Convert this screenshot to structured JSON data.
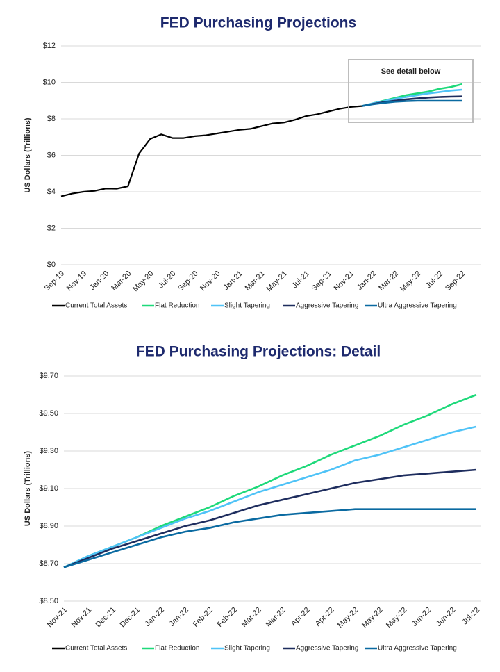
{
  "chart_data": [
    {
      "type": "line",
      "title": "FED Purchasing Projections",
      "y_label": "US Dollars (Trillions)",
      "annotation": "See detail below",
      "categories": [
        "Sep-19",
        null,
        "Nov-19",
        null,
        "Jan-20",
        null,
        "Mar-20",
        null,
        "May-20",
        null,
        "Jul-20",
        null,
        "Sep-20",
        null,
        "Nov-20",
        null,
        "Jan-21",
        null,
        "Mar-21",
        null,
        "May-21",
        null,
        "Jul-21",
        null,
        "Sep-21",
        null,
        "Nov-21",
        null,
        "Jan-22",
        null,
        "Mar-22",
        null,
        "May-22",
        null,
        "Jul-22",
        null,
        "Sep-22"
      ],
      "ylim": [
        0,
        12
      ],
      "yticks": [
        {
          "value": 0,
          "label": "$0"
        },
        {
          "value": 2,
          "label": "$2"
        },
        {
          "value": 4,
          "label": "$4"
        },
        {
          "value": 6,
          "label": "$6"
        },
        {
          "value": 8,
          "label": "$8"
        },
        {
          "value": 10,
          "label": "$10"
        },
        {
          "value": 12,
          "label": "$12"
        }
      ],
      "grid": true,
      "series": [
        {
          "name": "Current Total Assets",
          "color": "#000000",
          "values": [
            3.75,
            3.9,
            4.0,
            4.05,
            4.18,
            4.17,
            4.3,
            6.1,
            6.9,
            7.15,
            6.95,
            6.95,
            7.05,
            7.1,
            7.2,
            7.3,
            7.4,
            7.45,
            7.6,
            7.75,
            7.8,
            7.95,
            8.15,
            8.25,
            8.4,
            8.55,
            8.65,
            8.7,
            null,
            null,
            null,
            null,
            null,
            null,
            null,
            null,
            null
          ]
        },
        {
          "name": "Flat Reduction",
          "color": "#1ed97a",
          "values": [
            null,
            null,
            null,
            null,
            null,
            null,
            null,
            null,
            null,
            null,
            null,
            null,
            null,
            null,
            null,
            null,
            null,
            null,
            null,
            null,
            null,
            null,
            null,
            null,
            null,
            null,
            null,
            8.7,
            8.85,
            9.0,
            9.15,
            9.3,
            9.4,
            9.5,
            9.65,
            9.75,
            9.9
          ]
        },
        {
          "name": "Slight Tapering",
          "color": "#4fc3f7",
          "values": [
            null,
            null,
            null,
            null,
            null,
            null,
            null,
            null,
            null,
            null,
            null,
            null,
            null,
            null,
            null,
            null,
            null,
            null,
            null,
            null,
            null,
            null,
            null,
            null,
            null,
            null,
            null,
            8.7,
            8.85,
            8.97,
            9.1,
            9.2,
            9.3,
            9.4,
            9.47,
            9.55,
            9.6
          ]
        },
        {
          "name": "Aggressive Tapering",
          "color": "#1e2d5e",
          "values": [
            null,
            null,
            null,
            null,
            null,
            null,
            null,
            null,
            null,
            null,
            null,
            null,
            null,
            null,
            null,
            null,
            null,
            null,
            null,
            null,
            null,
            null,
            null,
            null,
            null,
            null,
            null,
            8.7,
            8.82,
            8.92,
            9.0,
            9.07,
            9.12,
            9.17,
            9.2,
            9.22,
            9.23
          ]
        },
        {
          "name": "Ultra Aggressive Tapering",
          "color": "#0a6aa1",
          "values": [
            null,
            null,
            null,
            null,
            null,
            null,
            null,
            null,
            null,
            null,
            null,
            null,
            null,
            null,
            null,
            null,
            null,
            null,
            null,
            null,
            null,
            null,
            null,
            null,
            null,
            null,
            null,
            8.7,
            8.8,
            8.88,
            8.94,
            8.97,
            8.99,
            8.99,
            8.99,
            8.99,
            8.99
          ]
        }
      ]
    },
    {
      "type": "line",
      "title": "FED Purchasing Projections: Detail",
      "y_label": "US Dollars (Trillions)",
      "categories": [
        "Nov-21",
        "Nov-21",
        "Dec-21",
        "Dec-21",
        "Jan-22",
        "Jan-22",
        "Feb-22",
        "Feb-22",
        "Mar-22",
        "Mar-22",
        "Apr-22",
        "Apr-22",
        "May-22",
        "May-22",
        "May-22",
        "Jun-22",
        "Jun-22",
        "Jul-22"
      ],
      "ylim": [
        8.5,
        9.7
      ],
      "yticks": [
        {
          "value": 8.5,
          "label": "$8.50"
        },
        {
          "value": 8.7,
          "label": "$8.70"
        },
        {
          "value": 8.9,
          "label": "$8.90"
        },
        {
          "value": 9.1,
          "label": "$9.10"
        },
        {
          "value": 9.3,
          "label": "$9.30"
        },
        {
          "value": 9.5,
          "label": "$9.50"
        },
        {
          "value": 9.7,
          "label": "$9.70"
        }
      ],
      "grid": true,
      "series": [
        {
          "name": "Current Total Assets",
          "color": "#000000",
          "values": [
            null,
            null,
            null,
            null,
            null,
            null,
            null,
            null,
            null,
            null,
            null,
            null,
            null,
            null,
            null,
            null,
            null,
            null
          ]
        },
        {
          "name": "Flat Reduction",
          "color": "#1ed97a",
          "values": [
            8.68,
            8.74,
            8.79,
            8.84,
            8.9,
            8.95,
            9.0,
            9.06,
            9.11,
            9.17,
            9.22,
            9.28,
            9.33,
            9.38,
            9.44,
            9.49,
            9.55,
            9.6
          ]
        },
        {
          "name": "Slight Tapering",
          "color": "#4fc3f7",
          "values": [
            8.68,
            8.74,
            8.79,
            8.84,
            8.89,
            8.94,
            8.98,
            9.03,
            9.08,
            9.12,
            9.16,
            9.2,
            9.25,
            9.28,
            9.32,
            9.36,
            9.4,
            9.43
          ]
        },
        {
          "name": "Aggressive Tapering",
          "color": "#1e2d5e",
          "values": [
            8.68,
            8.73,
            8.78,
            8.82,
            8.86,
            8.9,
            8.93,
            8.97,
            9.01,
            9.04,
            9.07,
            9.1,
            9.13,
            9.15,
            9.17,
            9.18,
            9.19,
            9.2
          ]
        },
        {
          "name": "Ultra Aggressive Tapering",
          "color": "#0a6aa1",
          "values": [
            8.68,
            8.72,
            8.76,
            8.8,
            8.84,
            8.87,
            8.89,
            8.92,
            8.94,
            8.96,
            8.97,
            8.98,
            8.99,
            8.99,
            8.99,
            8.99,
            8.99,
            8.99
          ]
        }
      ]
    }
  ]
}
